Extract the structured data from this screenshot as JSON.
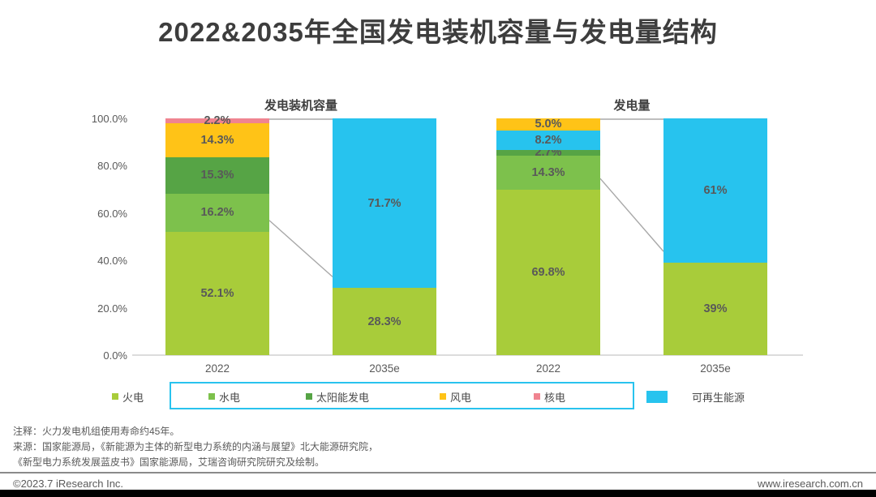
{
  "title": "2022&2035年全国发电装机容量与发电量结构",
  "chart_data": [
    {
      "type": "bar",
      "stacked": true,
      "title": "发电装机容量",
      "ylim": [
        0,
        100
      ],
      "unit": "%",
      "grid": false,
      "y_ticks": [
        {
          "label": "100.0%",
          "value": 100
        },
        {
          "label": "80.0%",
          "value": 80
        },
        {
          "label": "60.0%",
          "value": 60
        },
        {
          "label": "40.0%",
          "value": 40
        },
        {
          "label": "20.0%",
          "value": 20
        },
        {
          "label": "0.0%",
          "value": 0
        }
      ],
      "categories": [
        "2022",
        "2035e"
      ],
      "bars": [
        {
          "category": "2022",
          "segments": [
            {
              "name": "火电",
              "value": 52.1,
              "label": "52.1%",
              "color": "#A8CC3A"
            },
            {
              "name": "水电",
              "value": 16.2,
              "label": "16.2%",
              "color": "#7DC14C"
            },
            {
              "name": "太阳能发电",
              "value": 15.3,
              "label": "15.3%",
              "color": "#56A445"
            },
            {
              "name": "风电",
              "value": 14.3,
              "label": "14.3%",
              "color": "#FFC317"
            },
            {
              "name": "核电",
              "value": 2.2,
              "label": "2.2%",
              "color": "#F08490"
            }
          ]
        },
        {
          "category": "2035e",
          "segments": [
            {
              "name": "火电",
              "value": 28.3,
              "label": "28.3%",
              "color": "#A8CC3A"
            },
            {
              "name": "可再生能源",
              "value": 71.7,
              "label": "71.7%",
              "color": "#27C3EE"
            }
          ]
        }
      ]
    },
    {
      "type": "bar",
      "stacked": true,
      "title": "发电量",
      "ylim": [
        0,
        100
      ],
      "unit": "%",
      "grid": false,
      "categories": [
        "2022",
        "2035e"
      ],
      "bars": [
        {
          "category": "2022",
          "segments": [
            {
              "name": "火电",
              "value": 69.8,
              "label": "69.8%",
              "color": "#A8CC3A"
            },
            {
              "name": "水电",
              "value": 14.3,
              "label": "14.3%",
              "color": "#7DC14C"
            },
            {
              "name": "太阳能发电",
              "value": 2.7,
              "label": "2.7%",
              "color": "#56A445"
            },
            {
              "name": "风电",
              "value": 8.2,
              "label": "8.2%",
              "color": "#27C3EE"
            },
            {
              "name": "核电",
              "value": 5.0,
              "label": "5.0%",
              "color": "#FFC317"
            }
          ]
        },
        {
          "category": "2035e",
          "segments": [
            {
              "name": "火电",
              "value": 39,
              "label": "39%",
              "color": "#A8CC3A"
            },
            {
              "name": "可再生能源",
              "value": 61,
              "label": "61%",
              "color": "#27C3EE"
            }
          ]
        }
      ]
    }
  ],
  "legend": {
    "outside_item": {
      "label": "火电",
      "color": "#A8CC3A"
    },
    "box_border_color": "#29C3EE",
    "boxed_items": [
      {
        "label": "水电",
        "color": "#7DC14C"
      },
      {
        "label": "太阳能发电",
        "color": "#56A445"
      },
      {
        "label": "风电",
        "color": "#FFC317"
      },
      {
        "label": "核电",
        "color": "#F08490"
      }
    ],
    "renewable_item": {
      "label": "可再生能源",
      "color": "#27C3EE"
    }
  },
  "notes": {
    "lines": [
      "注释：火力发电机组使用寿命约45年。",
      "来源：国家能源局，《新能源为主体的新型电力系统的内涵与展望》北大能源研究院，",
      "《新型电力系统发展蓝皮书》国家能源局，艾瑞咨询研究院研究及绘制。"
    ]
  },
  "footer": {
    "copyright": "©2023.7 iResearch Inc.",
    "website": "www.iresearch.com.cn"
  },
  "colors": {
    "thermal": "#A8CC3A",
    "hydro": "#7DC14C",
    "solar": "#56A445",
    "wind": "#FFC317",
    "nuclear": "#F08490",
    "renewable": "#27C3EE",
    "axis_line": "#DCDCDC",
    "connector_line": "#A8A8A8",
    "label_text": "#595959",
    "title_text": "#3D3D3D"
  }
}
